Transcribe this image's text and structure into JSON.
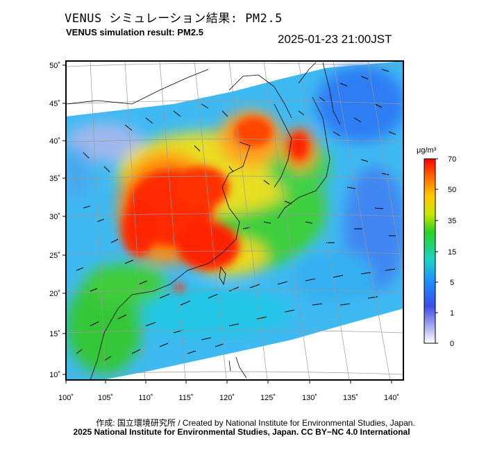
{
  "header": {
    "title_jp": "VENUS シミュレーション結果: PM2.5",
    "title_en": "VENUS simulation result: PM2.5",
    "timestamp": "2025-01-23 21:00JST"
  },
  "map": {
    "variable": "PM2.5",
    "lon_ticks": [
      "100˚",
      "105˚",
      "110˚",
      "115˚",
      "120˚",
      "125˚",
      "130˚",
      "135˚",
      "140˚"
    ],
    "lat_ticks": [
      "50˚",
      "45˚",
      "40˚",
      "35˚",
      "30˚",
      "25˚",
      "20˚",
      "15˚",
      "10˚"
    ],
    "colors": {
      "land_outline": "#000000",
      "frame": "#000000",
      "high": "#ff1a00",
      "orange": "#ff8c00",
      "yellow": "#f5e600",
      "green": "#2ecc2e",
      "cyan": "#1ec8e6",
      "blue": "#1e64ff"
    }
  },
  "colorbar": {
    "unit": "μg/m³",
    "labels": [
      "70",
      "50",
      "35",
      "15",
      "5",
      "1",
      "0"
    ],
    "stops": [
      "#ff0000",
      "#ff6a00",
      "#ffc800",
      "#c8e600",
      "#28d228",
      "#1ed2c8",
      "#1e8cff",
      "#3c50e6",
      "#b4b4f0",
      "#ffffff"
    ]
  },
  "footer": {
    "credit_line1": "作成: 国立環境研究所 / Created by National Institute for Environmental Studies, Japan.",
    "credit_line2": "2025 National Institute for Environmental Studies, Japan. CC BY−NC 4.0 International"
  }
}
